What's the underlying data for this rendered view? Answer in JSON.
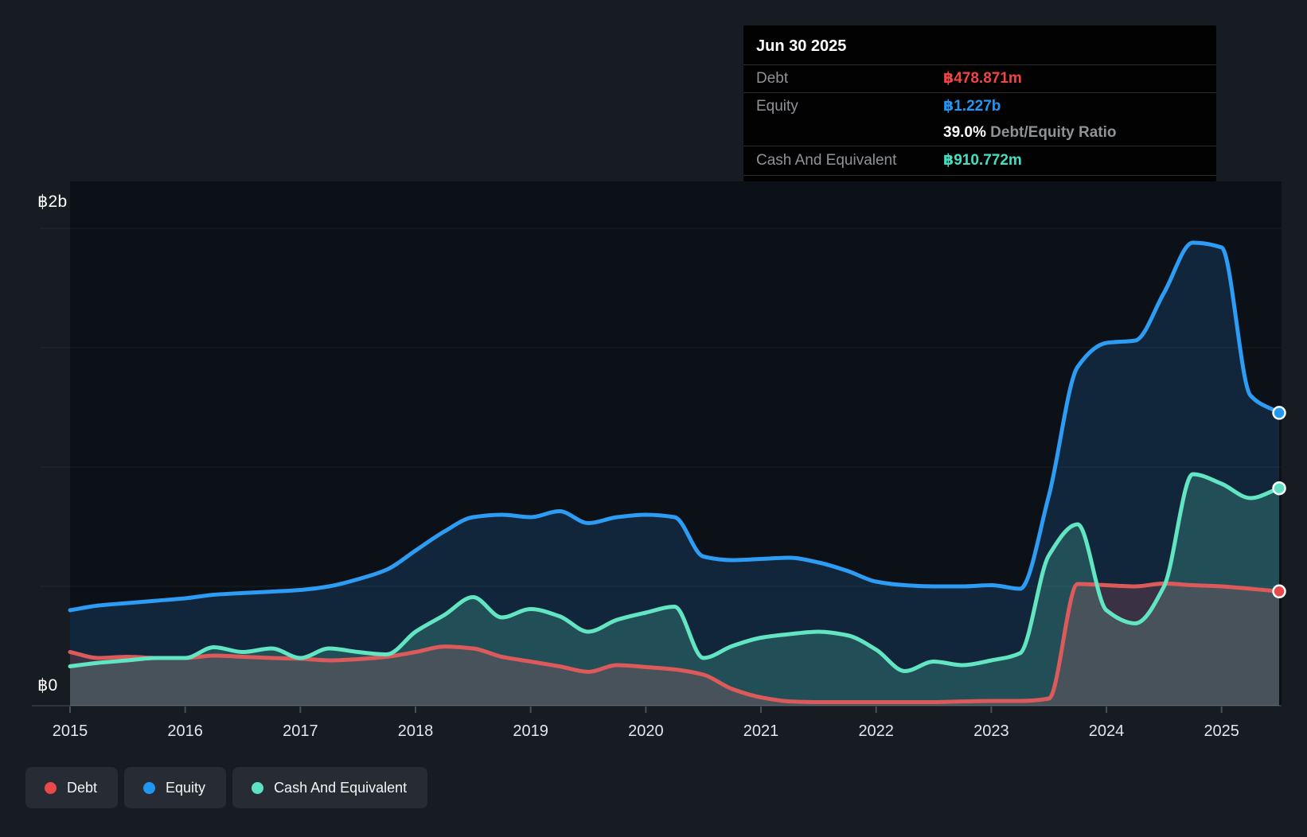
{
  "y_axis": {
    "top_label": "฿2b",
    "bottom_label": "฿0"
  },
  "x_axis": {
    "years": [
      "2015",
      "2016",
      "2017",
      "2018",
      "2019",
      "2020",
      "2021",
      "2022",
      "2023",
      "2024",
      "2025"
    ]
  },
  "tooltip": {
    "date": "Jun 30 2025",
    "rows": [
      {
        "kind": "value",
        "series": "debt",
        "label": "Debt",
        "value": "฿478.871m"
      },
      {
        "kind": "value",
        "series": "equity",
        "label": "Equity",
        "value": "฿1.227b"
      },
      {
        "kind": "ratio",
        "pct": "39.0%",
        "ratio_label": " Debt/Equity Ratio"
      },
      {
        "kind": "value",
        "series": "cash",
        "label": "Cash And Equivalent",
        "value": "฿910.772m"
      }
    ]
  },
  "legend": [
    {
      "series": "debt",
      "label": "Debt"
    },
    {
      "series": "equity",
      "label": "Equity"
    },
    {
      "series": "cash",
      "label": "Cash And Equivalent"
    }
  ],
  "colors": {
    "page_bg": "#171b22",
    "plot_bg": "#0c1017",
    "gridline": "rgba(255,255,255,0.055)",
    "baseline": "#39404a",
    "tick": "#4a5058",
    "debt": {
      "line": "#dc5a5a",
      "fill": "rgba(205,95,105,0.22)",
      "dot": "#e9494a",
      "value_text": "#ef4545"
    },
    "equity": {
      "line": "#2d9cf4",
      "fill": "rgba(45,156,244,0.16)",
      "dot": "#2196f3",
      "value_text": "#2196f3"
    },
    "cash": {
      "line": "#62e5c3",
      "fill": "rgba(95,227,193,0.22)",
      "dot": "#5fe0c4",
      "value_text": "#43dfc0"
    }
  },
  "chart_data": {
    "type": "area",
    "unit": "billions THB",
    "ylim": [
      0,
      2
    ],
    "xlim": [
      2015,
      2025.6
    ],
    "gridlines_b": [
      0.5,
      1.0,
      1.5,
      2.0
    ],
    "x_ticks": [
      2015,
      2016,
      2017,
      2018,
      2019,
      2020,
      2021,
      2022,
      2023,
      2024,
      2025
    ],
    "x": [
      2015,
      2015.25,
      2015.5,
      2015.75,
      2016,
      2016.25,
      2016.5,
      2016.75,
      2017,
      2017.25,
      2017.5,
      2017.75,
      2018,
      2018.25,
      2018.5,
      2018.75,
      2019,
      2019.25,
      2019.5,
      2019.75,
      2020,
      2020.25,
      2020.5,
      2020.75,
      2021,
      2021.25,
      2021.5,
      2021.75,
      2022,
      2022.25,
      2022.5,
      2022.75,
      2023,
      2023.25,
      2023.5,
      2023.75,
      2024,
      2024.25,
      2024.5,
      2024.75,
      2025,
      2025.25,
      2025.5
    ],
    "series": [
      {
        "key": "debt",
        "name": "Debt",
        "values": [
          0.225,
          0.2,
          0.205,
          0.2,
          0.2,
          0.21,
          0.205,
          0.2,
          0.197,
          0.19,
          0.195,
          0.205,
          0.225,
          0.248,
          0.24,
          0.205,
          0.185,
          0.165,
          0.142,
          0.17,
          0.162,
          0.152,
          0.13,
          0.07,
          0.035,
          0.018,
          0.015,
          0.015,
          0.015,
          0.015,
          0.015,
          0.018,
          0.02,
          0.02,
          0.03,
          0.51,
          0.505,
          0.5,
          0.512,
          0.505,
          0.5,
          0.49,
          0.479
        ],
        "last_value_label": "฿478.871m"
      },
      {
        "key": "equity",
        "name": "Equity",
        "values": [
          0.4,
          0.42,
          0.43,
          0.44,
          0.45,
          0.465,
          0.472,
          0.478,
          0.485,
          0.5,
          0.53,
          0.57,
          0.65,
          0.73,
          0.79,
          0.8,
          0.79,
          0.815,
          0.765,
          0.79,
          0.8,
          0.79,
          0.625,
          0.61,
          0.615,
          0.62,
          0.6,
          0.565,
          0.52,
          0.505,
          0.5,
          0.5,
          0.505,
          0.49,
          0.88,
          1.42,
          1.52,
          1.53,
          1.73,
          1.94,
          1.92,
          1.3,
          1.227
        ],
        "last_value_label": "฿1.227b"
      },
      {
        "key": "cash",
        "name": "Cash And Equivalent",
        "values": [
          0.165,
          0.18,
          0.19,
          0.2,
          0.2,
          0.245,
          0.225,
          0.24,
          0.2,
          0.24,
          0.225,
          0.215,
          0.31,
          0.38,
          0.455,
          0.37,
          0.405,
          0.375,
          0.31,
          0.36,
          0.39,
          0.415,
          0.2,
          0.25,
          0.285,
          0.3,
          0.31,
          0.295,
          0.235,
          0.145,
          0.185,
          0.17,
          0.19,
          0.22,
          0.63,
          0.76,
          0.4,
          0.345,
          0.5,
          0.97,
          0.93,
          0.87,
          0.911
        ],
        "last_value_label": "฿910.772m"
      }
    ]
  }
}
